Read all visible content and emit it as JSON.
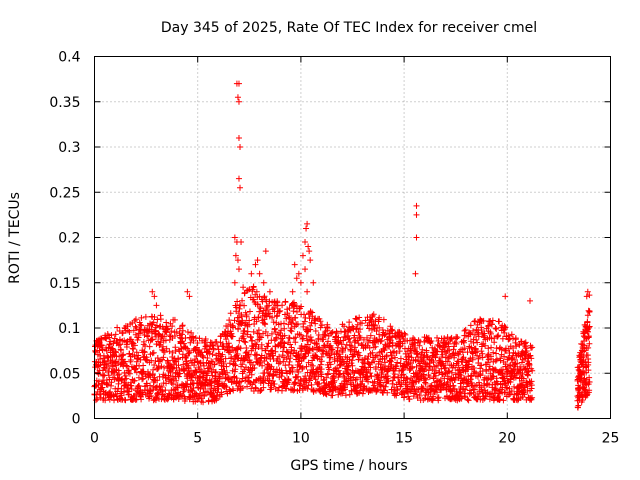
{
  "chart_data": {
    "type": "scatter",
    "title": "Day 345 of 2025, Rate Of TEC Index for receiver cmel",
    "xlabel": "GPS time / hours",
    "ylabel": "ROTI / TECUs",
    "xlim": [
      0,
      25
    ],
    "ylim": [
      0,
      0.4
    ],
    "xticks": [
      "0",
      "5",
      "10",
      "15",
      "20",
      "25"
    ],
    "yticks": [
      "0",
      "0.05",
      "0.1",
      "0.15",
      "0.2",
      "0.25",
      "0.3",
      "0.35",
      "0.4"
    ],
    "grid": true,
    "marker": "+",
    "color": "#ff0000",
    "series": [
      {
        "band_profile": [
          [
            0.0,
            0.02,
            0.085
          ],
          [
            1.0,
            0.02,
            0.1
          ],
          [
            2.0,
            0.02,
            0.11
          ],
          [
            3.0,
            0.02,
            0.115
          ],
          [
            4.0,
            0.02,
            0.11
          ],
          [
            5.0,
            0.015,
            0.09
          ],
          [
            6.0,
            0.02,
            0.085
          ],
          [
            6.6,
            0.03,
            0.12
          ],
          [
            7.5,
            0.03,
            0.15
          ],
          [
            8.5,
            0.03,
            0.13
          ],
          [
            9.5,
            0.03,
            0.13
          ],
          [
            10.5,
            0.03,
            0.12
          ],
          [
            11.5,
            0.025,
            0.1
          ],
          [
            12.5,
            0.025,
            0.11
          ],
          [
            13.5,
            0.03,
            0.12
          ],
          [
            14.5,
            0.025,
            0.1
          ],
          [
            15.5,
            0.02,
            0.09
          ],
          [
            16.5,
            0.02,
            0.09
          ],
          [
            17.5,
            0.02,
            0.09
          ],
          [
            18.5,
            0.02,
            0.11
          ],
          [
            19.5,
            0.02,
            0.11
          ],
          [
            20.5,
            0.02,
            0.09
          ],
          [
            21.2,
            0.02,
            0.08
          ]
        ],
        "gap_start": 21.2,
        "gap_end": 23.4,
        "tail_profile": [
          [
            23.4,
            0.01,
            0.06
          ],
          [
            23.7,
            0.02,
            0.1
          ],
          [
            24.0,
            0.03,
            0.14
          ]
        ],
        "outliers": [
          [
            6.9,
            0.37
          ],
          [
            7.0,
            0.37
          ],
          [
            6.95,
            0.355
          ],
          [
            7.0,
            0.35
          ],
          [
            7.0,
            0.31
          ],
          [
            7.05,
            0.3
          ],
          [
            7.0,
            0.265
          ],
          [
            7.05,
            0.255
          ],
          [
            6.8,
            0.2
          ],
          [
            6.9,
            0.195
          ],
          [
            7.1,
            0.195
          ],
          [
            6.85,
            0.18
          ],
          [
            6.95,
            0.175
          ],
          [
            7.0,
            0.165
          ],
          [
            6.8,
            0.15
          ],
          [
            7.2,
            0.145
          ],
          [
            7.6,
            0.16
          ],
          [
            7.8,
            0.17
          ],
          [
            7.9,
            0.175
          ],
          [
            8.3,
            0.185
          ],
          [
            8.0,
            0.16
          ],
          [
            8.2,
            0.15
          ],
          [
            7.7,
            0.145
          ],
          [
            8.5,
            0.14
          ],
          [
            10.3,
            0.215
          ],
          [
            10.25,
            0.21
          ],
          [
            10.2,
            0.195
          ],
          [
            10.35,
            0.19
          ],
          [
            10.4,
            0.185
          ],
          [
            10.1,
            0.18
          ],
          [
            10.45,
            0.175
          ],
          [
            10.2,
            0.165
          ],
          [
            9.7,
            0.17
          ],
          [
            9.8,
            0.155
          ],
          [
            9.9,
            0.16
          ],
          [
            10.0,
            0.15
          ],
          [
            10.6,
            0.15
          ],
          [
            10.3,
            0.14
          ],
          [
            9.6,
            0.14
          ],
          [
            15.6,
            0.235
          ],
          [
            15.6,
            0.225
          ],
          [
            15.6,
            0.2
          ],
          [
            15.55,
            0.16
          ],
          [
            2.8,
            0.14
          ],
          [
            2.9,
            0.135
          ],
          [
            3.0,
            0.125
          ],
          [
            4.5,
            0.14
          ],
          [
            4.6,
            0.135
          ],
          [
            19.9,
            0.135
          ],
          [
            21.1,
            0.13
          ],
          [
            23.9,
            0.14
          ],
          [
            23.85,
            0.135
          ]
        ]
      }
    ]
  }
}
